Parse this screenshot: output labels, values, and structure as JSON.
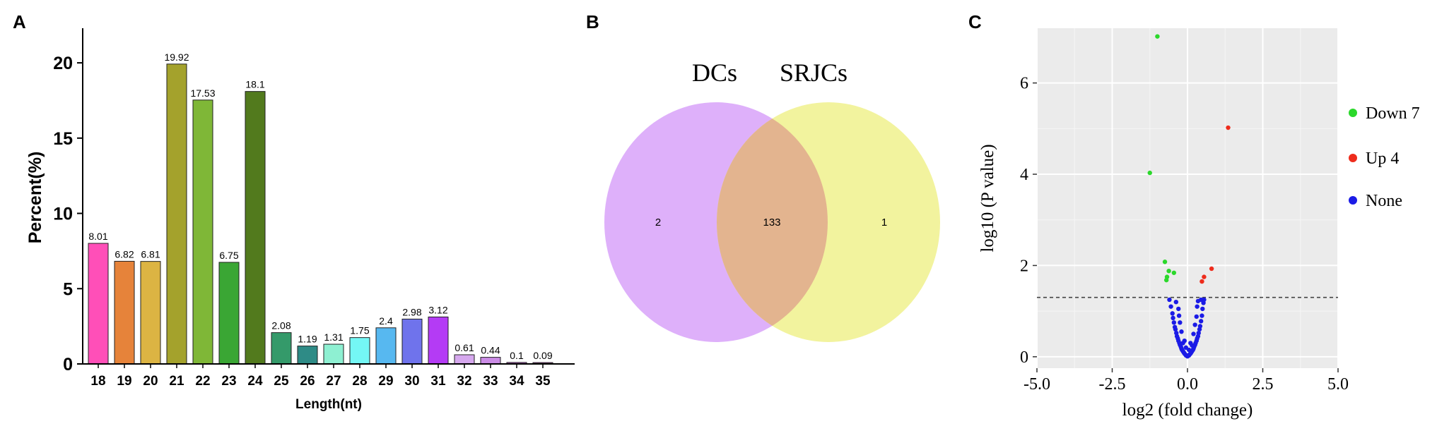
{
  "panels": {
    "a": "A",
    "b": "B",
    "c": "C"
  },
  "chart_data": [
    {
      "type": "bar",
      "xlabel": "Length(nt)",
      "ylabel": "Percent(%)",
      "ylim": [
        0,
        22.3
      ],
      "yticks": [
        0,
        5,
        10,
        15,
        20
      ],
      "categories": [
        "18",
        "19",
        "20",
        "21",
        "22",
        "23",
        "24",
        "25",
        "26",
        "27",
        "28",
        "29",
        "30",
        "31",
        "32",
        "33",
        "34",
        "35"
      ],
      "values": [
        8.01,
        6.82,
        6.81,
        19.92,
        17.53,
        6.75,
        18.1,
        2.08,
        1.19,
        1.31,
        1.75,
        2.4,
        2.98,
        3.12,
        0.61,
        0.44,
        0.1,
        0.09
      ],
      "value_labels": [
        "8.01",
        "6.82",
        "6.81",
        "19.92",
        "17.53",
        "6.75",
        "18.1",
        "2.08",
        "1.19",
        "1.31",
        "1.75",
        "2.4",
        "2.98",
        "3.12",
        "0.61",
        "0.44",
        "0.1",
        "0.09"
      ],
      "colors": [
        "#ff4fb8",
        "#e6833a",
        "#dcb443",
        "#a4a22c",
        "#7fb737",
        "#3aa634",
        "#527a1d",
        "#349a6a",
        "#2e8b86",
        "#8ef0d2",
        "#74f7f5",
        "#57b8f0",
        "#6f73ec",
        "#b43bf5",
        "#d6a8ee",
        "#cb8ce6",
        "#b45fc2",
        "#8a2f88"
      ],
      "grid": false
    },
    {
      "type": "venn",
      "sets": [
        "DCs",
        "SRJCs"
      ],
      "only_first": "2",
      "intersection": "133",
      "only_second": "1",
      "colors": {
        "first": "#deb0fa",
        "second": "#f2f39e",
        "overlap": "#e3b48f"
      }
    },
    {
      "type": "scatter",
      "xlabel": "log2 (fold change)",
      "ylabel": "log10 (P value)",
      "xlim": [
        -5.0,
        5.0
      ],
      "ylim": [
        -0.25,
        7.2
      ],
      "xticks": [
        "-5.0",
        "-2.5",
        "0.0",
        "2.5",
        "5.0"
      ],
      "yticks": [
        "0",
        "2",
        "4",
        "6"
      ],
      "threshold": 1.3,
      "background": "#ebebeb",
      "grid": true,
      "legend_position": "right",
      "series": [
        {
          "name": "Down 7",
          "color": "#2bd82b",
          "points": [
            [
              -1.0,
              7.02
            ],
            [
              -1.25,
              4.03
            ],
            [
              -0.75,
              2.08
            ],
            [
              -0.62,
              1.88
            ],
            [
              -0.45,
              1.84
            ],
            [
              -0.68,
              1.75
            ],
            [
              -0.7,
              1.68
            ]
          ]
        },
        {
          "name": "Up 4",
          "color": "#ee2c1c",
          "points": [
            [
              1.35,
              5.02
            ],
            [
              0.8,
              1.93
            ],
            [
              0.55,
              1.75
            ],
            [
              0.48,
              1.65
            ]
          ]
        },
        {
          "name": "None",
          "color": "#1b1be6",
          "points": [
            [
              -0.6,
              1.25
            ],
            [
              -0.55,
              1.1
            ],
            [
              -0.5,
              0.95
            ],
            [
              -0.48,
              0.85
            ],
            [
              -0.45,
              0.75
            ],
            [
              -0.42,
              0.65
            ],
            [
              -0.4,
              0.6
            ],
            [
              -0.37,
              0.52
            ],
            [
              -0.35,
              0.45
            ],
            [
              -0.32,
              0.4
            ],
            [
              -0.3,
              0.35
            ],
            [
              -0.27,
              0.3
            ],
            [
              -0.25,
              0.26
            ],
            [
              -0.22,
              0.22
            ],
            [
              -0.2,
              0.18
            ],
            [
              -0.18,
              0.15
            ],
            [
              -0.15,
              0.12
            ],
            [
              -0.12,
              0.09
            ],
            [
              -0.1,
              0.07
            ],
            [
              -0.07,
              0.05
            ],
            [
              -0.05,
              0.03
            ],
            [
              -0.02,
              0.02
            ],
            [
              0.0,
              0.01
            ],
            [
              0.02,
              0.02
            ],
            [
              0.05,
              0.03
            ],
            [
              0.07,
              0.05
            ],
            [
              0.1,
              0.07
            ],
            [
              0.12,
              0.09
            ],
            [
              0.15,
              0.12
            ],
            [
              0.18,
              0.15
            ],
            [
              0.2,
              0.18
            ],
            [
              0.22,
              0.22
            ],
            [
              0.25,
              0.26
            ],
            [
              0.27,
              0.3
            ],
            [
              0.3,
              0.35
            ],
            [
              0.32,
              0.4
            ],
            [
              0.35,
              0.45
            ],
            [
              0.37,
              0.52
            ],
            [
              0.4,
              0.6
            ],
            [
              0.42,
              0.67
            ],
            [
              0.45,
              0.78
            ],
            [
              0.48,
              0.9
            ],
            [
              0.5,
              1.05
            ],
            [
              0.53,
              1.18
            ],
            [
              0.55,
              1.25
            ],
            [
              0.45,
              1.25
            ],
            [
              0.35,
              1.22
            ],
            [
              -0.38,
              1.2
            ],
            [
              -0.3,
              1.05
            ],
            [
              -0.28,
              0.9
            ],
            [
              -0.25,
              0.75
            ],
            [
              -0.2,
              0.55
            ],
            [
              0.2,
              0.5
            ],
            [
              0.25,
              0.7
            ],
            [
              0.3,
              0.88
            ],
            [
              0.32,
              1.1
            ],
            [
              -0.1,
              0.35
            ],
            [
              0.1,
              0.3
            ],
            [
              -0.05,
              0.2
            ],
            [
              0.05,
              0.15
            ],
            [
              -0.15,
              0.3
            ],
            [
              0.15,
              0.25
            ]
          ]
        }
      ]
    }
  ]
}
